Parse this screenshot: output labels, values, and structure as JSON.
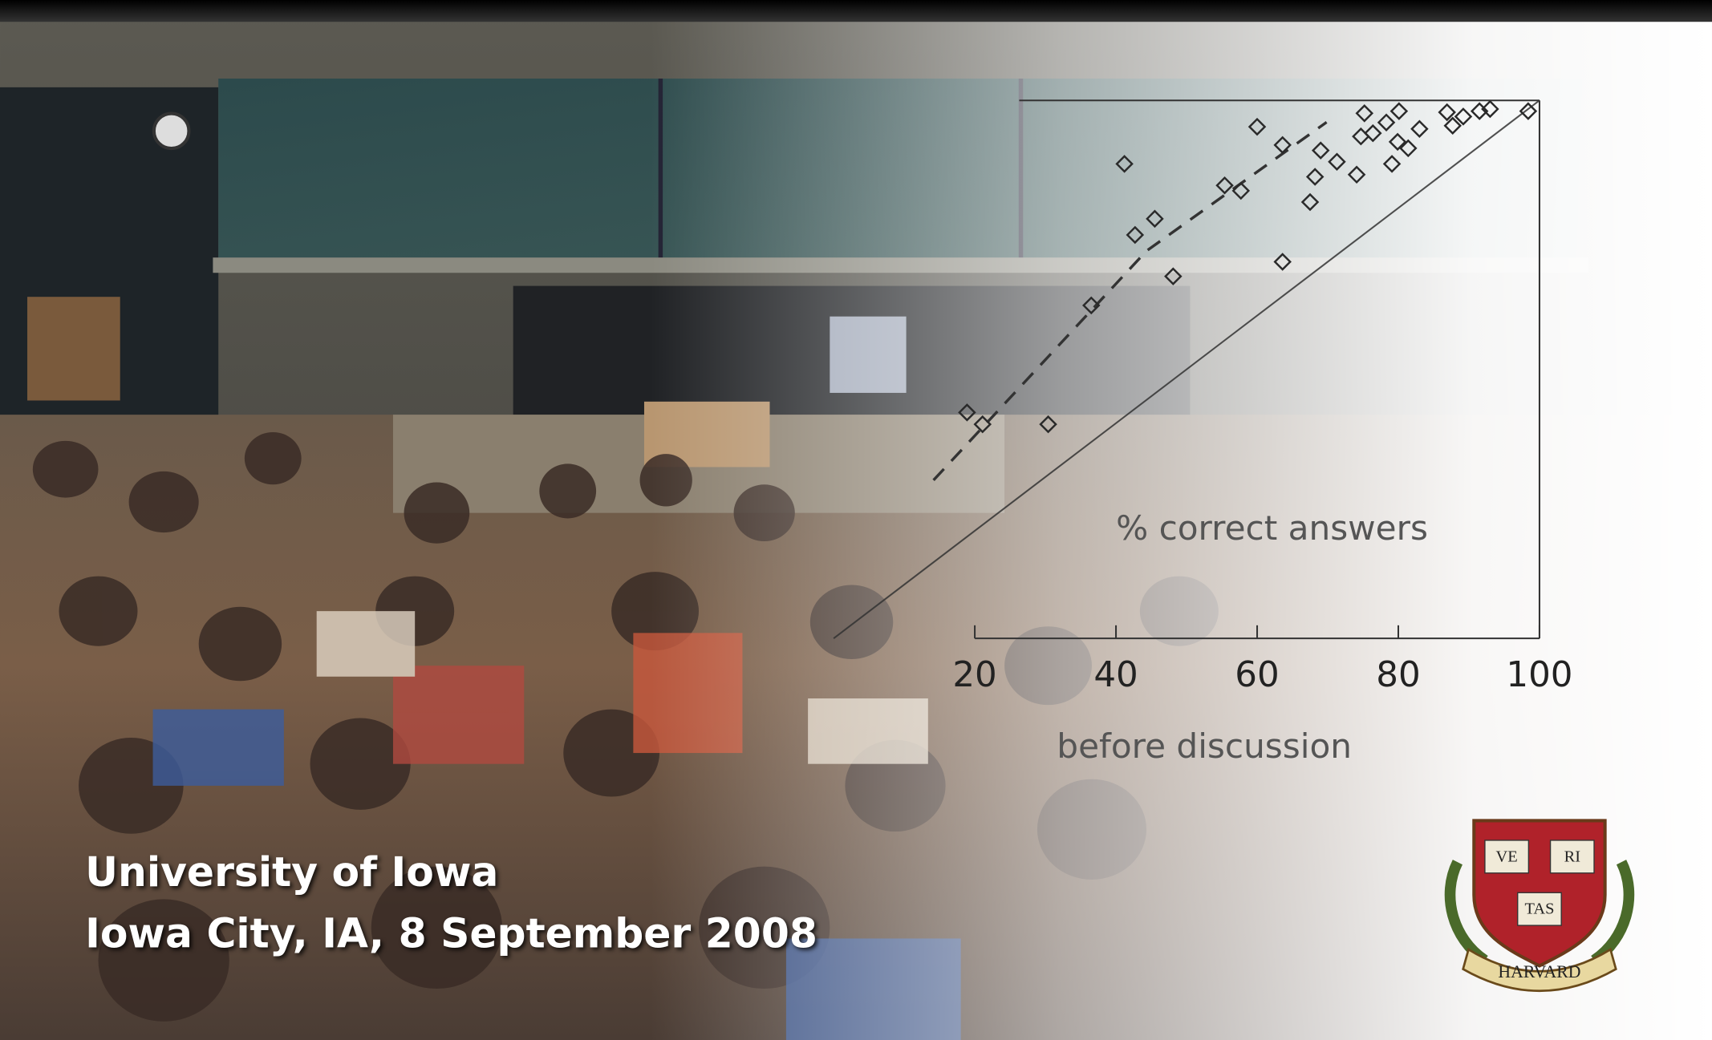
{
  "chart_data": {
    "type": "scatter",
    "y_label": "% correct answers",
    "x_label": "before discussion",
    "x": [
      18.9,
      21.1,
      30.4,
      36.5,
      42.7,
      48.1,
      45.5,
      41.2,
      55.4,
      57.7,
      60,
      63.6,
      63.6,
      67.5,
      68.2,
      69,
      71.3,
      74.1,
      75.2,
      76.4,
      74.7,
      78.3,
      80.1,
      79.9,
      79.1,
      81.4,
      83,
      86.9,
      87.7,
      89.2,
      91.5,
      93,
      98.4
    ],
    "values": [
      42,
      39.8,
      39.8,
      61.9,
      75,
      67.3,
      78,
      88.2,
      84.2,
      83.2,
      95.1,
      70,
      91.7,
      81.1,
      85.8,
      90.7,
      88.6,
      86.2,
      97.6,
      93.9,
      93.3,
      95.9,
      98,
      92.3,
      88.2,
      91.1,
      94.7,
      97.8,
      95.3,
      97,
      98,
      98.4,
      98
    ],
    "xlim": [
      0,
      100
    ],
    "ylim": [
      0,
      100
    ],
    "xticks": [
      20,
      40,
      60,
      80,
      100
    ],
    "color": "#2a2a2a"
  },
  "footer": {
    "line1": "University of Iowa",
    "line2": "Iowa City, IA, 8 September 2008"
  },
  "logo": {
    "motto": [
      "VE",
      "RI",
      "TAS"
    ],
    "name": "HARVARD"
  }
}
